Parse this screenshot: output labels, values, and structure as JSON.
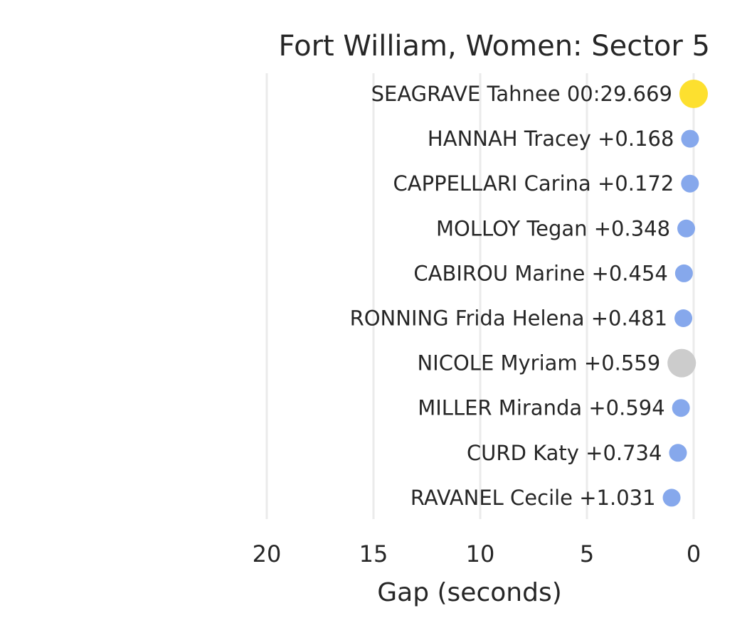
{
  "chart_data": {
    "type": "scatter",
    "title": "Fort William, Women: Sector 5",
    "xlabel": "Gap (seconds)",
    "ylabel": "",
    "xlim": [
      20,
      0
    ],
    "x_ticks": [
      20,
      15,
      10,
      5,
      0
    ],
    "grid": true,
    "colors": {
      "leader": "#fde02f",
      "highlight": "#cccccc",
      "default": "#86a8ec"
    },
    "points": [
      {
        "label": "SEAGRAVE Tahnee 00:29.669",
        "gap": 0,
        "kind": "leader"
      },
      {
        "label": "HANNAH Tracey +0.168",
        "gap": 0.168,
        "kind": "default"
      },
      {
        "label": "CAPPELLARI Carina +0.172",
        "gap": 0.172,
        "kind": "default"
      },
      {
        "label": "MOLLOY Tegan +0.348",
        "gap": 0.348,
        "kind": "default"
      },
      {
        "label": "CABIROU Marine +0.454",
        "gap": 0.454,
        "kind": "default"
      },
      {
        "label": "RONNING Frida Helena +0.481",
        "gap": 0.481,
        "kind": "default"
      },
      {
        "label": "NICOLE Myriam +0.559",
        "gap": 0.559,
        "kind": "highlight"
      },
      {
        "label": "MILLER Miranda +0.594",
        "gap": 0.594,
        "kind": "default"
      },
      {
        "label": "CURD Katy +0.734",
        "gap": 0.734,
        "kind": "default"
      },
      {
        "label": "RAVANEL Cecile +1.031",
        "gap": 1.031,
        "kind": "default"
      }
    ]
  }
}
